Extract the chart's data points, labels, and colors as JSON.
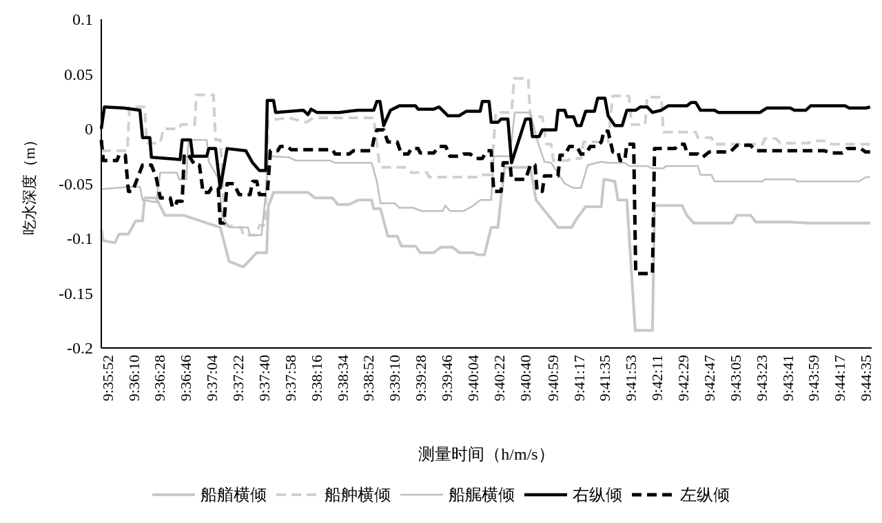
{
  "chart_data": {
    "type": "line",
    "xlabel": "测量时间（h/m/s）",
    "ylabel": "吃水深度（m）",
    "xlim": [
      9.5965,
      9.7441
    ],
    "ylim": [
      -0.2,
      0.1
    ],
    "yticks": [
      -0.2,
      -0.15,
      -0.1,
      -0.05,
      0,
      0.05,
      0.1
    ],
    "xticks": [
      {
        "value": 9.59778,
        "label": "9:35:52"
      },
      {
        "value": 9.60278,
        "label": "9:36:10"
      },
      {
        "value": 9.60778,
        "label": "9:36:28"
      },
      {
        "value": 9.61278,
        "label": "9:36:46"
      },
      {
        "value": 9.61778,
        "label": "9:37:04"
      },
      {
        "value": 9.62278,
        "label": "9:37:22"
      },
      {
        "value": 9.62778,
        "label": "9:37:40"
      },
      {
        "value": 9.63278,
        "label": "9:37:58"
      },
      {
        "value": 9.63778,
        "label": "9:38:16"
      },
      {
        "value": 9.64278,
        "label": "9:38:34"
      },
      {
        "value": 9.64778,
        "label": "9:38:52"
      },
      {
        "value": 9.65278,
        "label": "9:39:10"
      },
      {
        "value": 9.65778,
        "label": "9:39:28"
      },
      {
        "value": 9.66278,
        "label": "9:39:46"
      },
      {
        "value": 9.66778,
        "label": "9:40:04"
      },
      {
        "value": 9.67278,
        "label": "9:40:22"
      },
      {
        "value": 9.67778,
        "label": "9:40:40"
      },
      {
        "value": 9.68306,
        "label": "9:40:59"
      },
      {
        "value": 9.68806,
        "label": "9:41:17"
      },
      {
        "value": 9.69306,
        "label": "9:41:35"
      },
      {
        "value": 9.69806,
        "label": "9:41:53"
      },
      {
        "value": 9.70306,
        "label": "9:42:11"
      },
      {
        "value": 9.70806,
        "label": "9:42:29"
      },
      {
        "value": 9.71306,
        "label": "9:42:47"
      },
      {
        "value": 9.71806,
        "label": "9:43:05"
      },
      {
        "value": 9.72306,
        "label": "9:43:23"
      },
      {
        "value": 9.72806,
        "label": "9:43:41"
      },
      {
        "value": 9.73306,
        "label": "9:43:59"
      },
      {
        "value": 9.73806,
        "label": "9:44:17"
      },
      {
        "value": 9.74306,
        "label": "9:44:35"
      }
    ],
    "grid": false,
    "legend": "bottom",
    "marker": "none",
    "series": [
      {
        "name": "船艏横倾",
        "color": "#c8c8c8",
        "line_style": "solid",
        "x": [
          9.5965,
          9.5969,
          9.5991,
          9.5999,
          9.6017,
          9.6031,
          9.6044,
          9.6048,
          9.607,
          9.6087,
          9.6123,
          9.6193,
          9.621,
          9.6237,
          9.6263,
          9.6282,
          9.6285,
          9.6295,
          9.6361,
          9.6374,
          9.6408,
          9.6418,
          9.644,
          9.6457,
          9.6483,
          9.6487,
          9.65,
          9.6514,
          9.6532,
          9.654,
          9.6567,
          9.6576,
          9.6602,
          9.6616,
          9.6638,
          9.6651,
          9.6678,
          9.6686,
          9.6699,
          9.6712,
          9.6725,
          9.6731,
          9.6738,
          9.6787,
          9.6798,
          9.684,
          9.6866,
          9.6876,
          9.6893,
          9.6923,
          9.6928,
          9.6949,
          9.6955,
          9.6972,
          9.6988,
          9.7021,
          9.7025,
          9.7078,
          9.7087,
          9.71,
          9.7174,
          9.7183,
          9.7209,
          9.7219,
          9.7285,
          9.7319,
          9.7438
        ],
        "values": [
          -0.092,
          -0.102,
          -0.104,
          -0.096,
          -0.096,
          -0.084,
          -0.084,
          -0.063,
          -0.063,
          -0.079,
          -0.079,
          -0.09,
          -0.121,
          -0.126,
          -0.113,
          -0.113,
          -0.071,
          -0.058,
          -0.058,
          -0.063,
          -0.063,
          -0.069,
          -0.069,
          -0.065,
          -0.065,
          -0.073,
          -0.073,
          -0.098,
          -0.098,
          -0.107,
          -0.107,
          -0.113,
          -0.113,
          -0.108,
          -0.108,
          -0.113,
          -0.113,
          -0.115,
          -0.115,
          -0.09,
          -0.09,
          -0.063,
          -0.035,
          -0.035,
          -0.065,
          -0.09,
          -0.09,
          -0.082,
          -0.071,
          -0.071,
          -0.046,
          -0.048,
          -0.065,
          -0.065,
          -0.184,
          -0.184,
          -0.07,
          -0.07,
          -0.079,
          -0.086,
          -0.086,
          -0.079,
          -0.079,
          -0.085,
          -0.085,
          -0.086,
          -0.086
        ]
      },
      {
        "name": "船舯横倾",
        "color": "#d0d0d0",
        "line_style": "dashed",
        "x": [
          9.5965,
          9.6015,
          9.6019,
          9.6048,
          9.6052,
          9.6078,
          9.6084,
          9.6114,
          9.6118,
          9.6144,
          9.6147,
          9.618,
          9.6184,
          9.6193,
          9.6202,
          9.6233,
          9.6237,
          9.6263,
          9.6268,
          9.6279,
          9.6285,
          9.6325,
          9.6358,
          9.6371,
          9.6487,
          9.6497,
          9.65,
          9.6546,
          9.6559,
          9.6589,
          9.6593,
          9.6691,
          9.6695,
          9.6712,
          9.6721,
          9.6751,
          9.6756,
          9.6783,
          9.6787,
          9.681,
          9.6818,
          9.6827,
          9.6831,
          9.6857,
          9.6866,
          9.6884,
          9.6889,
          9.6936,
          9.6945,
          9.6976,
          9.6981,
          9.7007,
          9.7011,
          9.7038,
          9.7042,
          9.7104,
          9.7108,
          9.7134,
          9.714,
          9.7232,
          9.7236,
          9.7258,
          9.7266,
          9.7319,
          9.7329,
          9.7355,
          9.7364,
          9.7438
        ],
        "values": [
          -0.02,
          -0.02,
          0.02,
          0.02,
          -0.013,
          -0.013,
          0.0,
          0.0,
          0.004,
          0.004,
          0.031,
          0.031,
          -0.01,
          -0.01,
          -0.088,
          -0.09,
          -0.097,
          -0.097,
          -0.088,
          -0.088,
          0.008,
          0.01,
          0.006,
          0.01,
          0.01,
          -0.029,
          -0.035,
          -0.035,
          -0.04,
          -0.04,
          -0.044,
          -0.044,
          -0.042,
          -0.042,
          0.015,
          0.015,
          0.046,
          0.046,
          0.011,
          0.011,
          -0.014,
          -0.014,
          -0.029,
          -0.029,
          -0.027,
          -0.027,
          -0.012,
          -0.012,
          0.03,
          0.03,
          0.004,
          0.004,
          0.029,
          0.029,
          -0.003,
          -0.003,
          -0.008,
          -0.008,
          -0.014,
          -0.014,
          -0.009,
          -0.009,
          -0.013,
          -0.013,
          -0.011,
          -0.011,
          -0.014,
          -0.014
        ]
      },
      {
        "name": "船艉横倾",
        "color": "#bfbfbf",
        "line_style": "solid",
        "x": [
          9.5965,
          9.6017,
          9.6039,
          9.6044,
          9.607,
          9.6078,
          9.611,
          9.6114,
          9.6128,
          9.6132,
          9.6167,
          9.6171,
          9.6189,
          9.6197,
          9.621,
          9.6246,
          9.625,
          9.6272,
          9.628,
          9.6285,
          9.6325,
          9.6338,
          9.6404,
          9.6413,
          9.6483,
          9.6493,
          9.65,
          9.6527,
          9.6536,
          9.6562,
          9.6579,
          9.6619,
          9.6624,
          9.6633,
          9.6659,
          9.6678,
          9.6691,
          9.6712,
          9.6717,
          9.6748,
          9.6757,
          9.6787,
          9.68,
          9.6814,
          9.6827,
          9.6853,
          9.687,
          9.6884,
          9.6897,
          9.6923,
          9.6936,
          9.6968,
          9.6976,
          9.7011,
          9.7021,
          9.7042,
          9.7047,
          9.7108,
          9.7113,
          9.7134,
          9.714,
          9.7232,
          9.7236,
          9.7293,
          9.7298,
          9.7417,
          9.743,
          9.7438
        ],
        "values": [
          -0.055,
          -0.053,
          -0.053,
          -0.065,
          -0.067,
          -0.04,
          -0.04,
          -0.046,
          -0.046,
          -0.01,
          -0.01,
          -0.03,
          -0.045,
          -0.08,
          -0.09,
          -0.09,
          -0.097,
          -0.097,
          -0.06,
          -0.025,
          -0.026,
          -0.029,
          -0.029,
          -0.031,
          -0.031,
          -0.048,
          -0.068,
          -0.068,
          -0.072,
          -0.072,
          -0.075,
          -0.075,
          -0.07,
          -0.075,
          -0.075,
          -0.07,
          -0.065,
          -0.065,
          -0.025,
          -0.025,
          0.015,
          0.015,
          -0.01,
          -0.03,
          -0.031,
          -0.05,
          -0.054,
          -0.054,
          -0.033,
          -0.03,
          -0.031,
          -0.031,
          -0.034,
          -0.034,
          -0.036,
          -0.036,
          -0.034,
          -0.034,
          -0.042,
          -0.042,
          -0.048,
          -0.048,
          -0.046,
          -0.046,
          -0.048,
          -0.048,
          -0.044,
          -0.044
        ]
      },
      {
        "name": "右纵倾",
        "color": "#000000",
        "line_style": "solid",
        "x": [
          9.5965,
          9.5971,
          9.6008,
          9.6039,
          9.6044,
          9.6058,
          9.6061,
          9.6116,
          9.612,
          9.6136,
          9.614,
          9.6167,
          9.6171,
          9.6184,
          9.6193,
          9.6206,
          9.6242,
          9.6255,
          9.6268,
          9.628,
          9.6283,
          9.6295,
          9.6299,
          9.6352,
          9.6361,
          9.6367,
          9.6378,
          9.6421,
          9.6457,
          9.6487,
          9.6493,
          9.6499,
          9.6506,
          9.6519,
          9.6536,
          9.6567,
          9.6572,
          9.6602,
          9.6612,
          9.6629,
          9.6651,
          9.6664,
          9.6691,
          9.6695,
          9.6708,
          9.6712,
          9.6725,
          9.6731,
          9.6744,
          9.6751,
          9.6778,
          9.6787,
          9.6791,
          9.6804,
          9.681,
          9.6836,
          9.684,
          9.6853,
          9.6857,
          9.687,
          9.6876,
          9.6884,
          9.6893,
          9.691,
          9.6916,
          9.693,
          9.6936,
          9.6949,
          9.6963,
          9.6972,
          9.6989,
          9.6998,
          9.7011,
          9.7021,
          9.7038,
          9.7051,
          9.7087,
          9.7095,
          9.7104,
          9.7113,
          9.714,
          9.7147,
          9.7227,
          9.724,
          9.7285,
          9.7293,
          9.7315,
          9.7324,
          9.739,
          9.7398,
          9.743,
          9.7438
        ],
        "values": [
          0.0,
          0.02,
          0.019,
          0.017,
          -0.008,
          -0.008,
          -0.026,
          -0.028,
          -0.01,
          -0.01,
          -0.025,
          -0.025,
          -0.018,
          -0.018,
          -0.054,
          -0.018,
          -0.02,
          -0.031,
          -0.038,
          -0.038,
          0.026,
          0.026,
          0.015,
          0.017,
          0.013,
          0.018,
          0.015,
          0.015,
          0.017,
          0.017,
          0.025,
          0.025,
          0.003,
          0.017,
          0.021,
          0.021,
          0.018,
          0.018,
          0.02,
          0.012,
          0.012,
          0.016,
          0.016,
          0.025,
          0.025,
          0.006,
          0.006,
          0.009,
          0.009,
          -0.031,
          0.009,
          0.009,
          -0.007,
          -0.007,
          -0.001,
          -0.001,
          0.017,
          0.017,
          0.011,
          0.011,
          0.003,
          0.003,
          0.016,
          0.016,
          0.028,
          0.028,
          0.012,
          0.003,
          0.003,
          0.017,
          0.017,
          0.02,
          0.02,
          0.015,
          0.017,
          0.021,
          0.021,
          0.024,
          0.024,
          0.017,
          0.017,
          0.015,
          0.015,
          0.019,
          0.019,
          0.017,
          0.017,
          0.021,
          0.021,
          0.019,
          0.019,
          0.02
        ]
      },
      {
        "name": "左纵倾",
        "color": "#000000",
        "line_style": "dashed",
        "x": [
          9.5965,
          9.5969,
          9.5995,
          9.5999,
          9.6011,
          9.6017,
          9.6025,
          9.6032,
          9.6044,
          9.6061,
          9.607,
          9.6078,
          9.6097,
          9.6101,
          9.6107,
          9.611,
          9.612,
          9.6124,
          9.6131,
          9.6144,
          9.6153,
          9.616,
          9.6171,
          9.6176,
          9.6189,
          9.6193,
          9.62,
          9.6206,
          9.6219,
          9.6229,
          9.625,
          9.6255,
          9.6263,
          9.6268,
          9.6283,
          9.6289,
          9.6303,
          9.6308,
          9.6321,
          9.6329,
          9.6408,
          9.6413,
          9.644,
          9.6448,
          9.6483,
          9.6487,
          9.6493,
          9.6506,
          9.6514,
          9.6532,
          9.654,
          9.6553,
          9.6559,
          9.6572,
          9.6576,
          9.6602,
          9.6612,
          9.6625,
          9.6633,
          9.6651,
          9.6659,
          9.6672,
          9.6682,
          9.6695,
          9.6704,
          9.6712,
          9.6717,
          9.6731,
          9.6735,
          9.6748,
          9.6751,
          9.6778,
          9.6787,
          9.6796,
          9.68,
          9.681,
          9.6814,
          9.684,
          9.6844,
          9.6853,
          9.6862,
          9.6876,
          9.6884,
          9.6893,
          9.6902,
          9.6915,
          9.6923,
          9.6928,
          9.6936,
          9.6945,
          9.6955,
          9.6959,
          9.6968,
          9.6972,
          9.6985,
          9.6989,
          9.7021,
          9.7025,
          9.7064,
          9.7074,
          9.7082,
          9.7088,
          9.7108,
          9.7117,
          9.713,
          9.717,
          9.7183,
          9.7209,
          9.7219,
          9.7351,
          9.7364,
          9.7385,
          9.7394,
          9.742,
          9.7429,
          9.7438
        ],
        "values": [
          -0.01,
          -0.029,
          -0.029,
          -0.024,
          -0.024,
          -0.057,
          -0.057,
          -0.048,
          -0.033,
          -0.033,
          -0.044,
          -0.063,
          -0.063,
          -0.071,
          -0.071,
          -0.066,
          -0.066,
          -0.023,
          -0.023,
          -0.033,
          -0.033,
          -0.058,
          -0.058,
          -0.054,
          -0.054,
          -0.086,
          -0.086,
          -0.05,
          -0.05,
          -0.06,
          -0.06,
          -0.048,
          -0.048,
          -0.06,
          -0.06,
          -0.02,
          -0.02,
          -0.016,
          -0.016,
          -0.019,
          -0.019,
          -0.023,
          -0.023,
          -0.02,
          -0.02,
          -0.01,
          -0.001,
          -0.001,
          -0.012,
          -0.012,
          -0.023,
          -0.023,
          -0.018,
          -0.018,
          -0.022,
          -0.022,
          -0.016,
          -0.016,
          -0.025,
          -0.025,
          -0.023,
          -0.023,
          -0.027,
          -0.027,
          -0.02,
          -0.02,
          -0.057,
          -0.057,
          -0.031,
          -0.031,
          -0.046,
          -0.046,
          -0.033,
          -0.033,
          -0.057,
          -0.057,
          -0.043,
          -0.043,
          -0.024,
          -0.024,
          -0.016,
          -0.016,
          -0.023,
          -0.023,
          -0.016,
          -0.016,
          -0.012,
          -0.002,
          -0.002,
          -0.021,
          -0.021,
          -0.029,
          -0.029,
          -0.014,
          -0.014,
          -0.132,
          -0.132,
          -0.018,
          -0.018,
          -0.014,
          -0.014,
          -0.023,
          -0.023,
          -0.026,
          -0.021,
          -0.021,
          -0.015,
          -0.015,
          -0.02,
          -0.02,
          -0.022,
          -0.022,
          -0.018,
          -0.018,
          -0.021,
          -0.021
        ]
      }
    ]
  }
}
